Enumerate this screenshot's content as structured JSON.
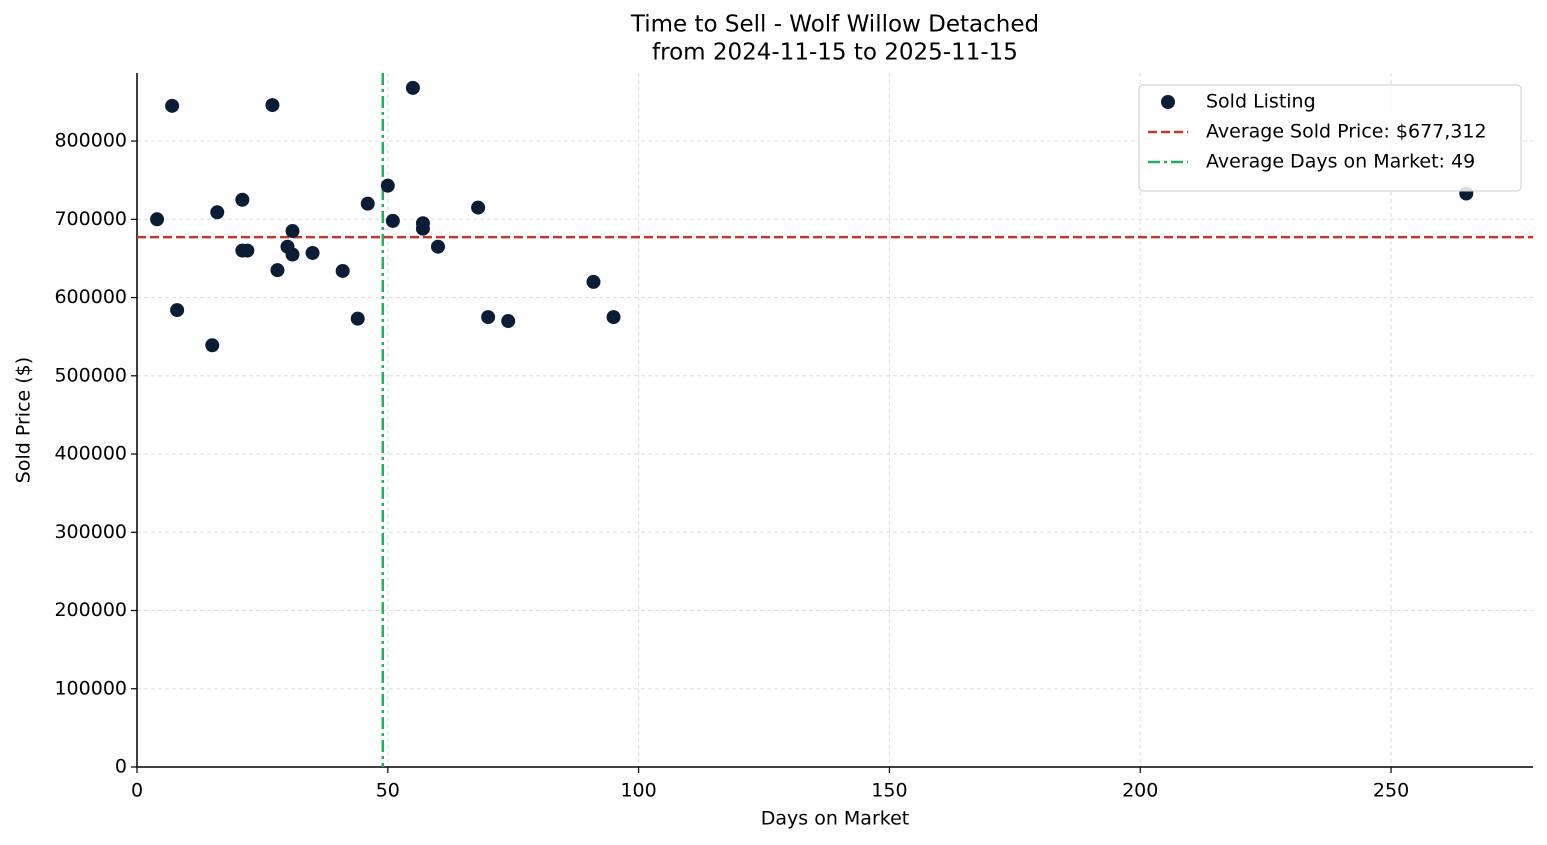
{
  "chart_data": {
    "type": "scatter",
    "title": "Time to Sell - Wolf Willow Detached",
    "subtitle": "from 2024-11-15 to 2025-11-15",
    "x_label": "Days on Market",
    "y_label": "Sold Price ($)",
    "series": [
      {
        "name": "Sold Listing",
        "color": "#0b1d36",
        "x": [
          4,
          7,
          8,
          15,
          16,
          21,
          21,
          22,
          27,
          28,
          30,
          31,
          31,
          35,
          41,
          44,
          46,
          50,
          51,
          55,
          57,
          57,
          60,
          68,
          70,
          74,
          91,
          95,
          265
        ],
        "values": [
          700000,
          845000,
          584000,
          539000,
          709000,
          725000,
          660000,
          660000,
          846000,
          635000,
          665000,
          685000,
          655000,
          657000,
          634000,
          573000,
          720000,
          743000,
          698000,
          868000,
          695000,
          688000,
          665000,
          715000,
          575000,
          570000,
          620000,
          575000,
          733000
        ]
      }
    ],
    "reference_lines": [
      {
        "axis": "y",
        "value": 677312,
        "label": "Average Sold Price: $677,312",
        "color": "#c0392b",
        "style": "dashed"
      },
      {
        "axis": "x",
        "value": 49,
        "label": "Average Days on Market: 49",
        "color": "#27ae60",
        "style": "dashdot"
      }
    ],
    "xlim": [
      0,
      278.3
    ],
    "ylim": [
      0,
      887000
    ],
    "xticks": [
      0,
      50,
      100,
      150,
      200,
      250
    ],
    "yticks": [
      0,
      100000,
      200000,
      300000,
      400000,
      500000,
      600000,
      700000,
      800000
    ],
    "grid": true,
    "legend": "upper right"
  }
}
